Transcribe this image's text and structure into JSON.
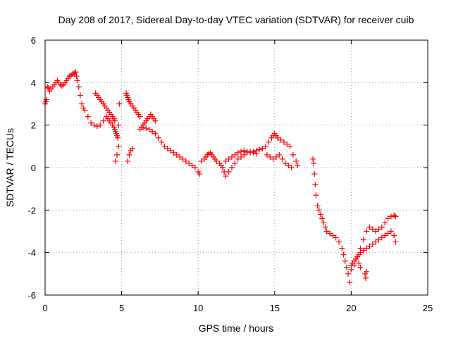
{
  "chart_data": {
    "type": "scatter",
    "title": "Day 208 of 2017, Sidereal Day-to-day VTEC variation (SDTVAR) for receiver cuib",
    "xlabel": "GPS time / hours",
    "ylabel": "SDTVAR / TECUs",
    "xlim": [
      0,
      25
    ],
    "ylim": [
      -6,
      6
    ],
    "xticks": [
      0,
      5,
      10,
      15,
      20,
      25
    ],
    "xtick_labels": [
      "0",
      "5",
      "10",
      "15",
      "20",
      "25"
    ],
    "yticks": [
      -6,
      -4,
      -2,
      0,
      2,
      4,
      6
    ],
    "ytick_labels": [
      "-6",
      "-4",
      "-2",
      "0",
      "2",
      "4",
      "6"
    ],
    "grid": true,
    "marker": "+",
    "color": "#ff0000",
    "series": [
      {
        "name": "SDTVAR",
        "x": [
          0.0,
          0.05,
          0.1,
          0.15,
          0.2,
          0.3,
          0.4,
          0.5,
          0.6,
          0.7,
          0.8,
          0.9,
          1.0,
          1.1,
          1.2,
          1.3,
          1.4,
          1.5,
          1.6,
          1.7,
          1.8,
          1.9,
          2.0,
          2.05,
          2.1,
          2.2,
          2.3,
          2.4,
          2.5,
          2.6,
          2.8,
          3.0,
          3.2,
          3.4,
          3.6,
          3.8,
          4.0,
          4.1,
          4.2,
          4.3,
          4.4,
          4.5,
          4.55,
          4.6,
          4.65,
          4.7,
          4.75,
          4.8,
          4.85,
          4.6,
          4.7,
          4.8,
          3.3,
          3.4,
          3.5,
          3.6,
          3.7,
          3.8,
          3.9,
          4.0,
          4.1,
          4.2,
          4.3,
          4.4,
          4.5,
          4.55,
          5.3,
          5.35,
          5.4,
          5.45,
          5.5,
          5.6,
          5.7,
          5.8,
          5.9,
          6.0,
          6.1,
          6.2,
          5.4,
          5.5,
          5.6,
          5.7,
          6.3,
          6.4,
          6.5,
          6.6,
          6.7,
          6.8,
          6.9,
          7.0,
          7.1,
          7.2,
          6.2,
          6.4,
          6.6,
          6.8,
          7.0,
          7.2,
          7.4,
          7.6,
          7.8,
          8.0,
          8.2,
          8.4,
          8.6,
          8.8,
          9.0,
          9.2,
          9.4,
          9.6,
          9.8,
          10.0,
          10.1,
          10.2,
          10.4,
          10.5,
          10.6,
          10.7,
          10.8,
          10.9,
          11.0,
          11.1,
          11.2,
          11.4,
          11.5,
          11.6,
          11.7,
          11.8,
          12.0,
          12.2,
          12.4,
          12.6,
          12.8,
          13.0,
          13.2,
          13.4,
          13.6,
          13.8,
          11.8,
          12.0,
          12.2,
          12.4,
          12.6,
          12.8,
          13.0,
          13.2,
          13.4,
          13.6,
          13.8,
          14.0,
          14.2,
          14.4,
          14.6,
          14.8,
          14.9,
          15.0,
          15.1,
          15.2,
          15.4,
          15.6,
          15.8,
          16.0,
          16.2,
          16.4,
          16.5,
          14.5,
          14.7,
          14.9,
          15.1,
          15.3,
          15.5,
          15.7,
          15.9,
          16.1,
          17.5,
          17.55,
          17.6,
          17.65,
          17.7,
          17.8,
          17.9,
          18.0,
          18.1,
          18.2,
          18.3,
          18.4,
          18.6,
          18.8,
          19.0,
          19.2,
          19.4,
          19.5,
          19.6,
          19.7,
          19.8,
          19.9,
          20.0,
          20.1,
          20.2,
          20.3,
          20.4,
          20.5,
          20.6,
          20.8,
          21.0,
          21.2,
          21.4,
          21.6,
          21.8,
          22.0,
          22.2,
          22.4,
          22.6,
          22.8,
          22.9,
          20.0,
          20.2,
          20.4,
          20.6,
          20.8,
          21.0,
          21.2,
          21.4,
          21.6,
          21.8,
          22.0,
          22.2,
          22.4,
          22.6,
          22.8,
          22.9,
          20.9,
          20.95,
          21.0,
          20.6,
          20.5
        ],
        "y": [
          3.0,
          3.1,
          3.2,
          3.8,
          3.75,
          3.6,
          3.7,
          3.8,
          3.9,
          4.0,
          4.1,
          4.0,
          3.9,
          3.85,
          3.9,
          4.0,
          4.1,
          4.2,
          4.3,
          4.35,
          4.4,
          4.45,
          4.5,
          4.3,
          4.1,
          3.8,
          3.4,
          3.0,
          2.8,
          2.7,
          2.4,
          2.1,
          2.0,
          1.95,
          2.0,
          2.2,
          2.4,
          2.3,
          2.2,
          2.1,
          2.0,
          1.9,
          1.8,
          1.7,
          1.6,
          1.5,
          1.4,
          2.0,
          3.0,
          0.3,
          0.6,
          1.0,
          3.5,
          3.4,
          3.3,
          3.2,
          3.1,
          3.0,
          2.9,
          2.8,
          2.7,
          2.6,
          2.5,
          2.4,
          2.3,
          2.2,
          3.5,
          3.4,
          3.3,
          3.2,
          3.1,
          3.0,
          2.9,
          2.8,
          2.7,
          2.6,
          2.5,
          2.4,
          0.3,
          0.6,
          0.8,
          0.9,
          1.9,
          2.0,
          2.1,
          2.2,
          2.3,
          2.4,
          2.5,
          2.4,
          2.3,
          2.2,
          1.8,
          1.9,
          1.85,
          1.8,
          1.7,
          1.6,
          1.4,
          1.2,
          1.0,
          0.9,
          0.8,
          0.7,
          0.6,
          0.5,
          0.4,
          0.3,
          0.2,
          0.1,
          0.0,
          -0.2,
          -0.3,
          0.3,
          0.4,
          0.5,
          0.6,
          0.65,
          0.7,
          0.6,
          0.5,
          0.4,
          0.3,
          0.2,
          0.1,
          0.0,
          -0.2,
          -0.4,
          -0.2,
          0.0,
          0.2,
          0.4,
          0.5,
          0.6,
          0.7,
          0.75,
          0.7,
          0.65,
          0.3,
          0.4,
          0.5,
          0.6,
          0.7,
          0.75,
          0.8,
          0.75,
          0.7,
          0.75,
          0.8,
          0.85,
          0.9,
          1.0,
          1.2,
          1.4,
          1.5,
          1.6,
          1.5,
          1.4,
          1.3,
          1.2,
          1.1,
          1.0,
          0.6,
          0.3,
          0.1,
          0.6,
          0.5,
          0.4,
          0.5,
          0.6,
          0.4,
          0.2,
          0.1,
          0.0,
          0.4,
          0.2,
          -0.3,
          -0.8,
          -1.3,
          -1.8,
          -2.0,
          -2.2,
          -2.4,
          -2.6,
          -2.8,
          -3.0,
          -3.1,
          -3.2,
          -3.3,
          -3.5,
          -3.8,
          -4.1,
          -4.4,
          -4.7,
          -5.0,
          -5.4,
          -4.6,
          -4.5,
          -4.4,
          -4.3,
          -4.2,
          -4.1,
          -4.0,
          -3.9,
          -3.8,
          -3.7,
          -3.6,
          -3.5,
          -3.4,
          -3.3,
          -3.2,
          -3.1,
          -3.0,
          -3.2,
          -3.5,
          -4.8,
          -4.6,
          -4.2,
          -3.8,
          -3.4,
          -3.0,
          -2.8,
          -2.9,
          -3.0,
          -2.9,
          -2.8,
          -2.6,
          -2.4,
          -2.3,
          -2.25,
          -2.3,
          -5.0,
          -5.2,
          -4.9,
          -4.7,
          -4.5
        ]
      }
    ]
  }
}
